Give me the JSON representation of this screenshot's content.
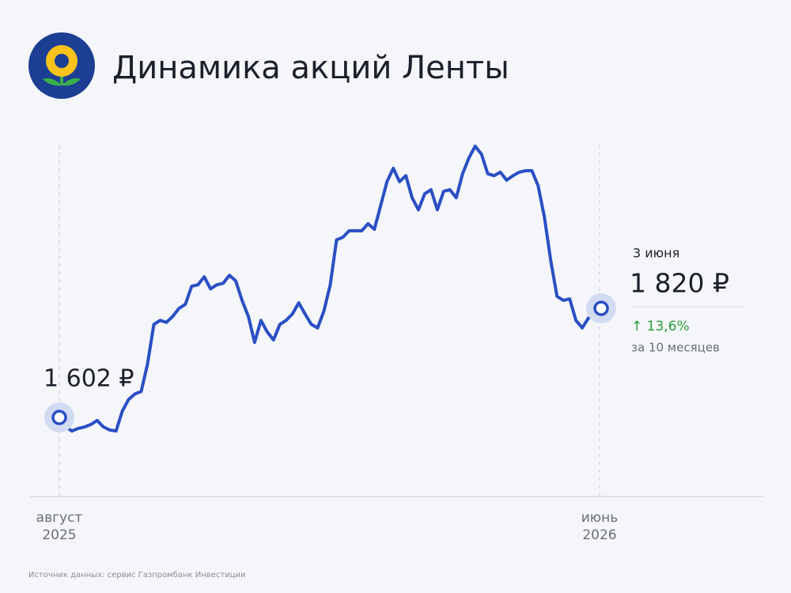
{
  "chart_data": {
    "type": "line",
    "title": "Динамика акций Ленты",
    "series": [
      {
        "color": "#2a4fc4",
        "values": [
          1602,
          1583,
          1575,
          1580,
          1583,
          1588,
          1596,
          1583,
          1577,
          1575,
          1615,
          1638,
          1649,
          1654,
          1709,
          1788,
          1796,
          1792,
          1804,
          1820,
          1828,
          1864,
          1867,
          1883,
          1859,
          1867,
          1870,
          1886,
          1875,
          1836,
          1804,
          1752,
          1796,
          1773,
          1757,
          1788,
          1796,
          1809,
          1831,
          1809,
          1788,
          1781,
          1815,
          1867,
          1957,
          1962,
          1975,
          1975,
          1975,
          1989,
          1978,
          2025,
          2073,
          2100,
          2073,
          2085,
          2041,
          2017,
          2049,
          2057,
          2017,
          2054,
          2057,
          2041,
          2089,
          2120,
          2144,
          2128,
          2089,
          2085,
          2092,
          2076,
          2085,
          2092,
          2095,
          2095,
          2065,
          2002,
          1915,
          1844,
          1836,
          1839,
          1796,
          1781,
          1801,
          1807,
          1820
        ],
        "value_labels": [
          "1 602 ₽",
          null,
          null,
          null,
          null,
          null,
          null,
          null,
          null,
          null,
          null,
          null,
          null,
          null,
          null,
          null,
          null,
          null,
          null,
          null,
          null,
          null,
          null,
          null,
          null,
          null,
          null,
          null,
          null,
          null,
          null,
          null,
          null,
          null,
          null,
          null,
          null,
          null,
          null,
          null,
          null,
          null,
          null,
          null,
          null,
          null,
          null,
          null,
          null,
          null,
          null,
          null,
          null,
          null,
          null,
          null,
          null,
          null,
          null,
          null,
          null,
          null,
          null,
          null,
          null,
          null,
          null,
          null,
          null,
          null,
          null,
          null,
          null,
          null,
          null,
          null,
          null,
          null,
          null,
          null,
          null,
          null,
          null,
          null,
          null,
          null,
          "1 820 ₽"
        ]
      }
    ],
    "x_labels": [
      {
        "month": "август",
        "year": "2025"
      },
      {
        "month": "июнь",
        "year": "2026"
      }
    ],
    "last_date": "3 июня",
    "change": {
      "value": 13.6,
      "label": "↑ 13,6%",
      "color": "#2a9d3c"
    },
    "change_period": "за 10 месяцев",
    "source": "Источник данных: сервис Газпромбанк Инвестиции"
  }
}
